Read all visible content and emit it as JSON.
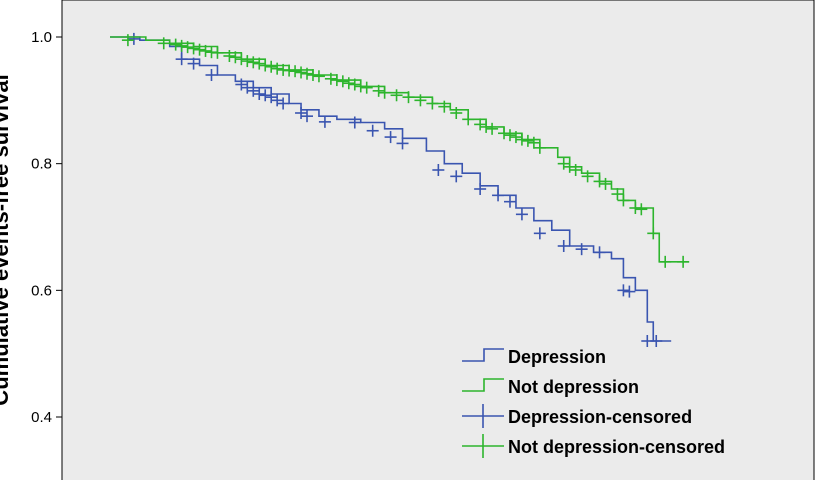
{
  "chart_data": {
    "type": "line",
    "subtype": "kaplan-meier step",
    "title": "",
    "xlabel": "",
    "ylabel": "Cumulative events-free survival",
    "ylim": [
      0.3,
      1.05
    ],
    "yticks": [
      1.0,
      0.8,
      0.6,
      0.4
    ],
    "ytick_labels": [
      "1.0",
      "0.8",
      "0.6",
      "0.4"
    ],
    "xlim": [
      0,
      100
    ],
    "grid": false,
    "plot_background": "#ebebeb",
    "legend_position": "bottom-right",
    "series": [
      {
        "name": "Depression",
        "color": "#3a55b0",
        "steps": [
          [
            0,
            1.0
          ],
          [
            5,
            0.995
          ],
          [
            10,
            0.985
          ],
          [
            12,
            0.965
          ],
          [
            15,
            0.955
          ],
          [
            18,
            0.94
          ],
          [
            21,
            0.93
          ],
          [
            24,
            0.92
          ],
          [
            27,
            0.91
          ],
          [
            30,
            0.895
          ],
          [
            32,
            0.885
          ],
          [
            35,
            0.875
          ],
          [
            38,
            0.87
          ],
          [
            42,
            0.865
          ],
          [
            46,
            0.855
          ],
          [
            49,
            0.84
          ],
          [
            53,
            0.82
          ],
          [
            56,
            0.8
          ],
          [
            59,
            0.785
          ],
          [
            62,
            0.765
          ],
          [
            65,
            0.75
          ],
          [
            68,
            0.73
          ],
          [
            71,
            0.71
          ],
          [
            74,
            0.695
          ],
          [
            77,
            0.67
          ],
          [
            81,
            0.66
          ],
          [
            84,
            0.65
          ],
          [
            86,
            0.62
          ],
          [
            88,
            0.6
          ],
          [
            90,
            0.55
          ],
          [
            91,
            0.52
          ],
          [
            94,
            0.52
          ]
        ],
        "censored": [
          [
            4,
            0.997
          ],
          [
            12,
            0.965
          ],
          [
            14,
            0.958
          ],
          [
            17,
            0.94
          ],
          [
            22,
            0.925
          ],
          [
            23,
            0.92
          ],
          [
            24,
            0.915
          ],
          [
            25,
            0.91
          ],
          [
            26,
            0.908
          ],
          [
            27,
            0.905
          ],
          [
            28,
            0.9
          ],
          [
            29,
            0.895
          ],
          [
            32,
            0.88
          ],
          [
            33,
            0.875
          ],
          [
            36,
            0.866
          ],
          [
            41,
            0.865
          ],
          [
            44,
            0.852
          ],
          [
            47,
            0.842
          ],
          [
            49,
            0.832
          ],
          [
            55,
            0.79
          ],
          [
            58,
            0.78
          ],
          [
            62,
            0.76
          ],
          [
            65,
            0.75
          ],
          [
            67,
            0.74
          ],
          [
            69,
            0.72
          ],
          [
            72,
            0.69
          ],
          [
            76,
            0.67
          ],
          [
            79,
            0.665
          ],
          [
            82,
            0.66
          ],
          [
            86,
            0.6
          ],
          [
            87,
            0.598
          ],
          [
            90,
            0.52
          ],
          [
            91.5,
            0.52
          ]
        ]
      },
      {
        "name": "Not depression",
        "color": "#2db52d",
        "steps": [
          [
            0,
            1.0
          ],
          [
            6,
            0.995
          ],
          [
            10,
            0.99
          ],
          [
            14,
            0.985
          ],
          [
            18,
            0.975
          ],
          [
            22,
            0.965
          ],
          [
            26,
            0.955
          ],
          [
            30,
            0.948
          ],
          [
            34,
            0.94
          ],
          [
            38,
            0.932
          ],
          [
            42,
            0.922
          ],
          [
            46,
            0.912
          ],
          [
            50,
            0.905
          ],
          [
            54,
            0.895
          ],
          [
            57,
            0.885
          ],
          [
            60,
            0.87
          ],
          [
            63,
            0.858
          ],
          [
            66,
            0.848
          ],
          [
            69,
            0.838
          ],
          [
            72,
            0.825
          ],
          [
            75,
            0.81
          ],
          [
            77,
            0.795
          ],
          [
            79,
            0.785
          ],
          [
            82,
            0.772
          ],
          [
            84,
            0.76
          ],
          [
            86,
            0.742
          ],
          [
            88,
            0.73
          ],
          [
            91,
            0.69
          ],
          [
            92,
            0.645
          ],
          [
            97,
            0.645
          ]
        ],
        "censored": [
          [
            3,
            0.995
          ],
          [
            9,
            0.99
          ],
          [
            11,
            0.988
          ],
          [
            12,
            0.986
          ],
          [
            13,
            0.984
          ],
          [
            14,
            0.982
          ],
          [
            15,
            0.98
          ],
          [
            16,
            0.978
          ],
          [
            17,
            0.976
          ],
          [
            18,
            0.975
          ],
          [
            20,
            0.97
          ],
          [
            21,
            0.968
          ],
          [
            22,
            0.965
          ],
          [
            23,
            0.962
          ],
          [
            24,
            0.96
          ],
          [
            25,
            0.958
          ],
          [
            26,
            0.955
          ],
          [
            27,
            0.953
          ],
          [
            28,
            0.95
          ],
          [
            29,
            0.948
          ],
          [
            30,
            0.947
          ],
          [
            31,
            0.946
          ],
          [
            32,
            0.944
          ],
          [
            33,
            0.942
          ],
          [
            34,
            0.94
          ],
          [
            35,
            0.938
          ],
          [
            37,
            0.934
          ],
          [
            38,
            0.932
          ],
          [
            39,
            0.93
          ],
          [
            40,
            0.927
          ],
          [
            41,
            0.925
          ],
          [
            42,
            0.922
          ],
          [
            43,
            0.92
          ],
          [
            45,
            0.915
          ],
          [
            46,
            0.912
          ],
          [
            48,
            0.908
          ],
          [
            50,
            0.905
          ],
          [
            52,
            0.9
          ],
          [
            54,
            0.895
          ],
          [
            56,
            0.89
          ],
          [
            58,
            0.88
          ],
          [
            60,
            0.87
          ],
          [
            62,
            0.862
          ],
          [
            63,
            0.858
          ],
          [
            64,
            0.855
          ],
          [
            66,
            0.848
          ],
          [
            67,
            0.845
          ],
          [
            68,
            0.842
          ],
          [
            69,
            0.838
          ],
          [
            70,
            0.836
          ],
          [
            71,
            0.833
          ],
          [
            72,
            0.825
          ],
          [
            76,
            0.8
          ],
          [
            77,
            0.795
          ],
          [
            78,
            0.79
          ],
          [
            80,
            0.78
          ],
          [
            82,
            0.772
          ],
          [
            83,
            0.768
          ],
          [
            85,
            0.752
          ],
          [
            86,
            0.742
          ],
          [
            88,
            0.73
          ],
          [
            89,
            0.728
          ],
          [
            91,
            0.69
          ],
          [
            93,
            0.645
          ],
          [
            96,
            0.645
          ]
        ]
      }
    ],
    "legend_entries": [
      {
        "label": "Depression",
        "kind": "line",
        "color": "#3a55b0"
      },
      {
        "label": "Not depression",
        "kind": "line",
        "color": "#2db52d"
      },
      {
        "label": "Depression-censored",
        "kind": "censor",
        "color": "#3a55b0"
      },
      {
        "label": "Not depression-censored",
        "kind": "censor",
        "color": "#2db52d"
      }
    ]
  }
}
